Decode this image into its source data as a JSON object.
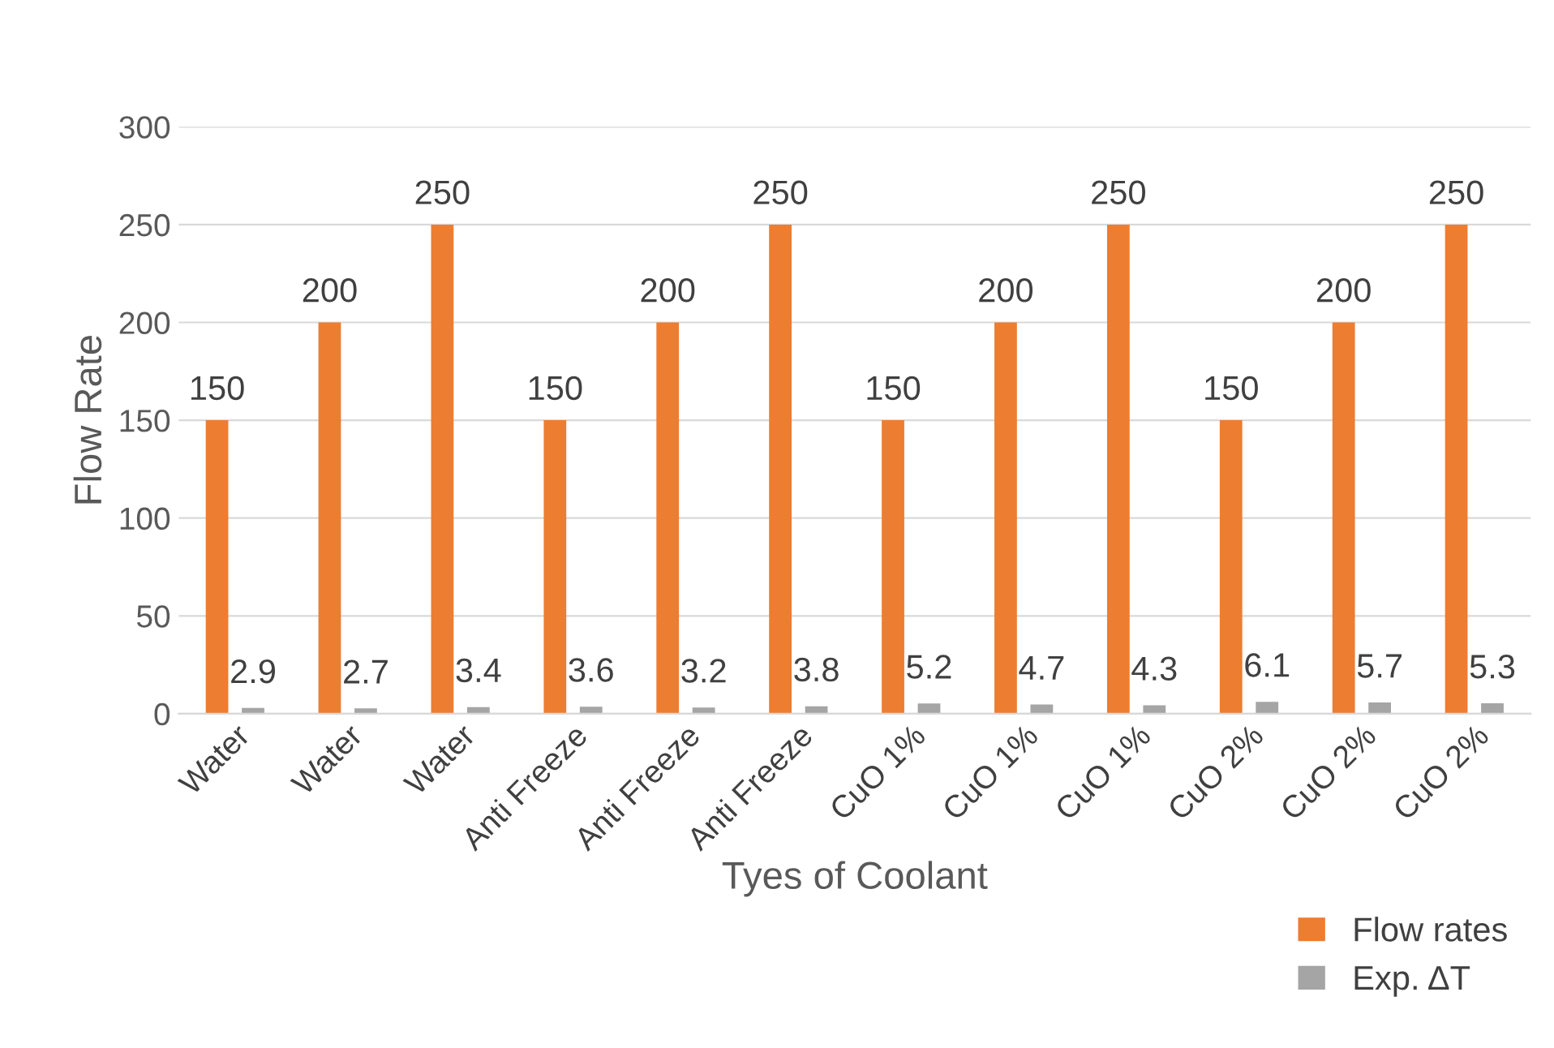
{
  "chart_data": {
    "type": "bar",
    "xlabel": "Tyes of Coolant",
    "ylabel": "Flow Rate",
    "categories": [
      "Water",
      "Water",
      "Water",
      "Anti Freeze",
      "Anti Freeze",
      "Anti Freeze",
      "CuO 1%",
      "CuO 1%",
      "CuO 1%",
      "CuO 2%",
      "CuO 2%",
      "CuO 2%"
    ],
    "series": [
      {
        "name": "Flow rates",
        "color": "#ed7d31",
        "values": [
          150,
          200,
          250,
          150,
          200,
          250,
          150,
          200,
          250,
          150,
          200,
          250
        ]
      },
      {
        "name": "Exp. ΔT",
        "color": "#a5a5a5",
        "values": [
          2.9,
          2.7,
          3.4,
          3.6,
          3.2,
          3.8,
          5.2,
          4.7,
          4.3,
          6.1,
          5.7,
          5.3
        ]
      }
    ],
    "ylim": [
      0,
      300
    ],
    "yticks": [
      0,
      50,
      100,
      150,
      200,
      250,
      300
    ],
    "grid": "y",
    "legend": "bottom right",
    "data_labels": true
  }
}
